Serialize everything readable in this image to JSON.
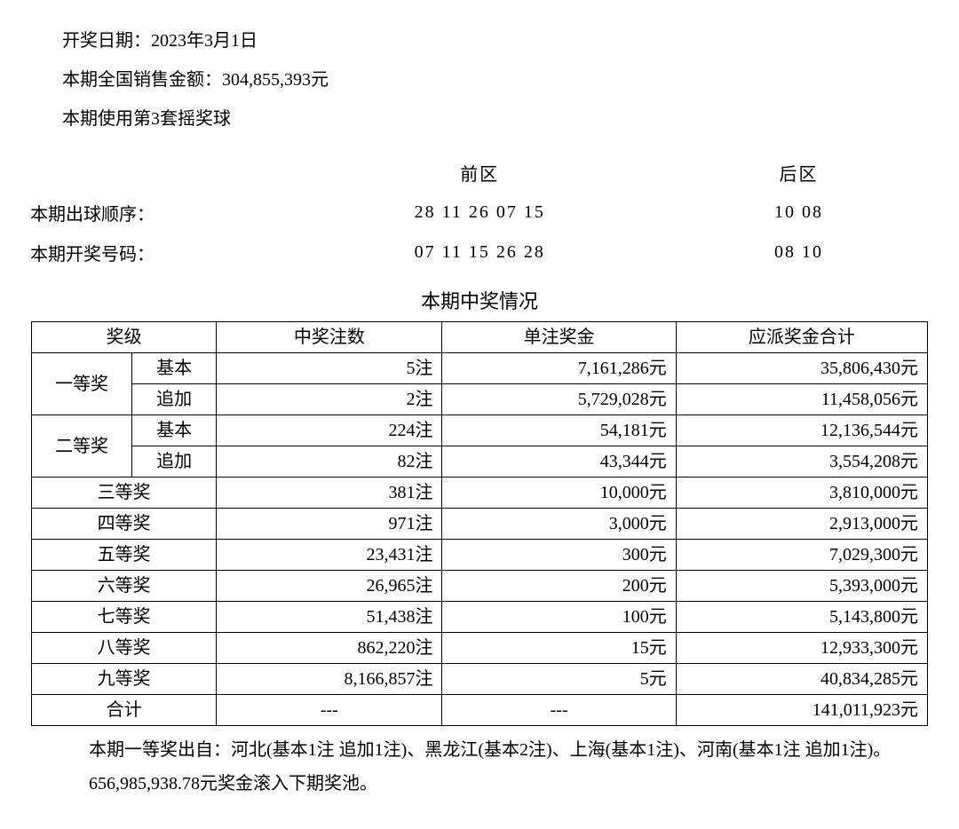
{
  "info": {
    "draw_date_label": "开奖日期：",
    "draw_date_value": "2023年3月1日",
    "sales_label": "本期全国销售金额：",
    "sales_value": "304,855,393元",
    "ball_set_label": "本期使用第3套摇奖球"
  },
  "numbers": {
    "front_header": "前区",
    "back_header": "后区",
    "draw_order_label": "本期出球顺序：",
    "draw_order_front": "28 11 26 07 15",
    "draw_order_back": "10 08",
    "winning_label": "本期开奖号码：",
    "winning_front": "07 11 15 26 28",
    "winning_back": "08 10"
  },
  "section_title": "本期中奖情况",
  "prize_table": {
    "headers": {
      "level": "奖级",
      "count": "中奖注数",
      "unit": "单注奖金",
      "total": "应派奖金合计"
    },
    "rows": [
      {
        "level": "一等奖",
        "rowspan": 2,
        "sub": "基本",
        "count": "5注",
        "unit": "7,161,286元",
        "total": "35,806,430元"
      },
      {
        "level": "",
        "rowspan": 0,
        "sub": "追加",
        "count": "2注",
        "unit": "5,729,028元",
        "total": "11,458,056元"
      },
      {
        "level": "二等奖",
        "rowspan": 2,
        "sub": "基本",
        "count": "224注",
        "unit": "54,181元",
        "total": "12,136,544元"
      },
      {
        "level": "",
        "rowspan": 0,
        "sub": "追加",
        "count": "82注",
        "unit": "43,344元",
        "total": "3,554,208元"
      },
      {
        "level": "三等奖",
        "colspan": 2,
        "count": "381注",
        "unit": "10,000元",
        "total": "3,810,000元"
      },
      {
        "level": "四等奖",
        "colspan": 2,
        "count": "971注",
        "unit": "3,000元",
        "total": "2,913,000元"
      },
      {
        "level": "五等奖",
        "colspan": 2,
        "count": "23,431注",
        "unit": "300元",
        "total": "7,029,300元"
      },
      {
        "level": "六等奖",
        "colspan": 2,
        "count": "26,965注",
        "unit": "200元",
        "total": "5,393,000元"
      },
      {
        "level": "七等奖",
        "colspan": 2,
        "count": "51,438注",
        "unit": "100元",
        "total": "5,143,800元"
      },
      {
        "level": "八等奖",
        "colspan": 2,
        "count": "862,220注",
        "unit": "15元",
        "total": "12,933,300元"
      },
      {
        "level": "九等奖",
        "colspan": 2,
        "count": "8,166,857注",
        "unit": "5元",
        "total": "40,834,285元"
      },
      {
        "level": "合计",
        "colspan": 2,
        "count": "---",
        "unit": "---",
        "total": "141,011,923元"
      }
    ]
  },
  "footer": {
    "origin": "本期一等奖出自：河北(基本1注 追加1注)、黑龙江(基本2注)、上海(基本1注)、河南(基本1注 追加1注)。",
    "rollover": "656,985,938.78元奖金滚入下期奖池。"
  }
}
